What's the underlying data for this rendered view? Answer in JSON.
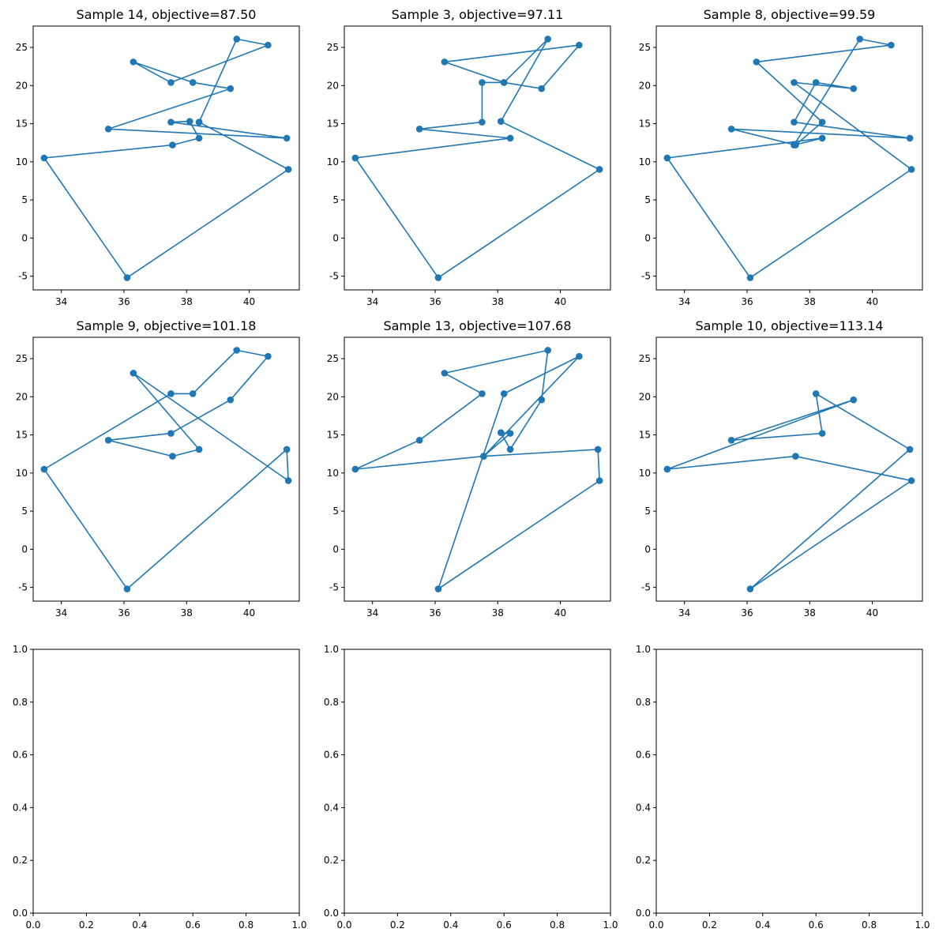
{
  "chart_data": [
    {
      "type": "line",
      "title": "Sample 14, objective=87.50",
      "markers": true,
      "xlim": [
        33.1,
        41.6
      ],
      "ylim": [
        -6.8,
        27.8
      ],
      "xticks": [
        34,
        36,
        38,
        40
      ],
      "yticks": [
        -5,
        0,
        5,
        10,
        15,
        20,
        25
      ],
      "x": [
        38.4,
        39.6,
        40.6,
        37.5,
        36.3,
        38.2,
        39.4,
        35.5,
        41.2,
        37.5,
        38.1,
        38.4,
        37.55,
        33.45,
        36.1,
        41.25,
        38.4
      ],
      "y": [
        15.2,
        26.1,
        25.3,
        20.4,
        23.1,
        20.4,
        19.6,
        14.3,
        13.1,
        15.2,
        15.3,
        13.1,
        12.2,
        10.5,
        -5.2,
        9.0,
        15.2
      ]
    },
    {
      "type": "line",
      "title": "Sample 3, objective=97.11",
      "markers": true,
      "xlim": [
        33.1,
        41.6
      ],
      "ylim": [
        -6.8,
        27.8
      ],
      "xticks": [
        34,
        36,
        38,
        40
      ],
      "yticks": [
        -5,
        0,
        5,
        10,
        15,
        20,
        25
      ],
      "x": [
        33.45,
        38.4,
        35.5,
        37.5,
        37.5,
        38.2,
        36.3,
        40.6,
        39.4,
        38.2,
        39.6,
        38.1,
        41.25,
        36.1,
        33.45
      ],
      "y": [
        10.5,
        13.1,
        14.3,
        15.2,
        20.4,
        20.4,
        23.1,
        25.3,
        19.6,
        20.4,
        26.1,
        15.3,
        9.0,
        -5.2,
        10.5
      ]
    },
    {
      "type": "line",
      "title": "Sample 8, objective=99.59",
      "markers": true,
      "xlim": [
        33.1,
        41.6
      ],
      "ylim": [
        -6.8,
        27.8
      ],
      "xticks": [
        34,
        36,
        38,
        40
      ],
      "yticks": [
        -5,
        0,
        5,
        10,
        15,
        20,
        25
      ],
      "x": [
        33.45,
        38.4,
        37.5,
        39.6,
        40.6,
        36.3,
        38.4,
        37.55,
        35.5,
        41.2,
        37.5,
        38.2,
        39.4,
        37.5,
        41.25,
        36.1,
        33.45
      ],
      "y": [
        10.5,
        13.1,
        12.2,
        26.1,
        25.3,
        23.1,
        15.2,
        12.2,
        14.3,
        13.1,
        15.2,
        20.4,
        19.6,
        20.4,
        9.0,
        -5.2,
        10.5
      ]
    },
    {
      "type": "line",
      "title": "Sample 9, objective=101.18",
      "markers": true,
      "xlim": [
        33.1,
        41.6
      ],
      "ylim": [
        -6.8,
        27.8
      ],
      "xticks": [
        34,
        36,
        38,
        40
      ],
      "yticks": [
        -5,
        0,
        5,
        10,
        15,
        20,
        25
      ],
      "x": [
        33.45,
        37.5,
        38.2,
        39.6,
        40.6,
        39.4,
        37.5,
        35.5,
        37.55,
        38.4,
        36.3,
        41.25,
        41.2,
        36.1,
        33.45
      ],
      "y": [
        10.5,
        20.4,
        20.4,
        26.1,
        25.3,
        19.6,
        15.2,
        14.3,
        12.2,
        13.1,
        23.1,
        9.0,
        13.1,
        -5.2,
        10.5
      ]
    },
    {
      "type": "line",
      "title": "Sample 13, objective=107.68",
      "markers": true,
      "xlim": [
        33.1,
        41.6
      ],
      "ylim": [
        -6.8,
        27.8
      ],
      "xticks": [
        34,
        36,
        38,
        40
      ],
      "yticks": [
        -5,
        0,
        5,
        10,
        15,
        20,
        25
      ],
      "x": [
        33.45,
        35.5,
        37.5,
        36.3,
        39.6,
        39.4,
        38.4,
        38.1,
        38.4,
        37.55,
        41.2,
        41.25,
        36.1,
        38.2,
        40.6,
        37.55,
        33.45
      ],
      "y": [
        10.5,
        14.3,
        20.4,
        23.1,
        26.1,
        19.6,
        13.1,
        15.3,
        15.2,
        12.2,
        13.1,
        9.0,
        -5.2,
        20.4,
        25.3,
        12.2,
        10.5
      ]
    },
    {
      "type": "line",
      "title": "Sample 10, objective=113.14",
      "markers": true,
      "xlim": [
        33.1,
        41.6
      ],
      "ylim": [
        -6.8,
        27.8
      ],
      "xticks": [
        34,
        36,
        38,
        40
      ],
      "yticks": [
        -5,
        0,
        5,
        10,
        15,
        20,
        25
      ],
      "x": [
        33.45,
        39.4,
        35.5,
        38.4,
        38.2,
        41.2,
        36.1,
        41.25,
        37.55,
        33.45
      ],
      "y": [
        10.5,
        19.6,
        14.3,
        15.2,
        20.4,
        13.1,
        -5.2,
        9.0,
        12.2,
        10.5
      ]
    },
    {
      "type": "line",
      "title": "",
      "empty": true,
      "xlim": [
        0,
        1
      ],
      "ylim": [
        0,
        1
      ],
      "xticks": [
        0.0,
        0.2,
        0.4,
        0.6,
        0.8,
        1.0
      ],
      "yticks": [
        0.0,
        0.2,
        0.4,
        0.6,
        0.8,
        1.0
      ],
      "x": [],
      "y": []
    },
    {
      "type": "line",
      "title": "",
      "empty": true,
      "xlim": [
        0,
        1
      ],
      "ylim": [
        0,
        1
      ],
      "xticks": [
        0.0,
        0.2,
        0.4,
        0.6,
        0.8,
        1.0
      ],
      "yticks": [
        0.0,
        0.2,
        0.4,
        0.6,
        0.8,
        1.0
      ],
      "x": [],
      "y": []
    },
    {
      "type": "line",
      "title": "",
      "empty": true,
      "xlim": [
        0,
        1
      ],
      "ylim": [
        0,
        1
      ],
      "xticks": [
        0.0,
        0.2,
        0.4,
        0.6,
        0.8,
        1.0
      ],
      "yticks": [
        0.0,
        0.2,
        0.4,
        0.6,
        0.8,
        1.0
      ],
      "x": [],
      "y": []
    }
  ],
  "colors": {
    "series": "#1f77b4",
    "axis": "#000000"
  }
}
